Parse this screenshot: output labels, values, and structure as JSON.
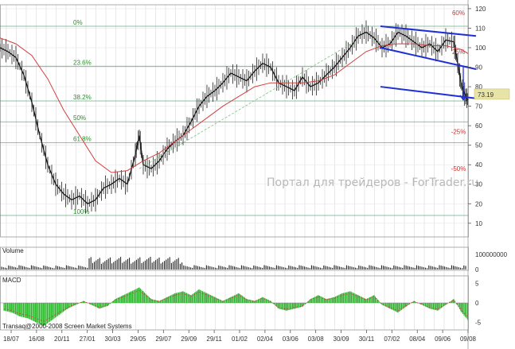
{
  "chart_data": {
    "type": "line",
    "price_axis": {
      "ticks": [
        10,
        20,
        30,
        40,
        50,
        60,
        70,
        80,
        90,
        100,
        110,
        120
      ],
      "ylim": [
        3,
        122
      ]
    },
    "x_tick_labels": [
      "18/07",
      "16/08",
      "20/11",
      "27/01",
      "30/03",
      "29/05",
      "29/07",
      "29/09",
      "29/11",
      "01/02",
      "02/04",
      "03/06",
      "03/08",
      "30/09",
      "30/11",
      "07/02",
      "08/04",
      "09/06",
      "09/08"
    ],
    "fib_levels": [
      {
        "label": "0%",
        "value": 111
      },
      {
        "label": "23.6%",
        "value": 90.5
      },
      {
        "label": "38.2%",
        "value": 72.7
      },
      {
        "label": "50%",
        "value": 62
      },
      {
        "label": "61.8%",
        "value": 51.3
      },
      {
        "label": "100%",
        "value": 14
      }
    ],
    "percent_labels": [
      {
        "label": "60%",
        "value": 118
      },
      {
        "label": "25%",
        "value": 98
      },
      {
        "label": "-25%",
        "value": 57
      },
      {
        "label": "-50%",
        "value": 38
      }
    ],
    "current_price": {
      "label": "73.19",
      "value": 76
    },
    "price_series": [
      [
        0,
        100
      ],
      [
        10,
        98
      ],
      [
        20,
        95
      ],
      [
        30,
        86
      ],
      [
        40,
        72
      ],
      [
        50,
        55
      ],
      [
        60,
        40
      ],
      [
        70,
        30
      ],
      [
        80,
        25
      ],
      [
        90,
        22
      ],
      [
        100,
        24
      ],
      [
        110,
        20
      ],
      [
        120,
        22
      ],
      [
        130,
        28
      ],
      [
        140,
        30
      ],
      [
        150,
        33
      ],
      [
        160,
        30
      ],
      [
        170,
        45
      ],
      [
        175,
        55
      ],
      [
        180,
        40
      ],
      [
        190,
        38
      ],
      [
        200,
        42
      ],
      [
        210,
        48
      ],
      [
        220,
        52
      ],
      [
        230,
        55
      ],
      [
        240,
        62
      ],
      [
        250,
        70
      ],
      [
        260,
        75
      ],
      [
        270,
        78
      ],
      [
        280,
        82
      ],
      [
        290,
        87
      ],
      [
        300,
        85
      ],
      [
        310,
        83
      ],
      [
        320,
        88
      ],
      [
        330,
        92
      ],
      [
        340,
        90
      ],
      [
        350,
        82
      ],
      [
        360,
        80
      ],
      [
        370,
        78
      ],
      [
        380,
        85
      ],
      [
        390,
        80
      ],
      [
        400,
        82
      ],
      [
        410,
        86
      ],
      [
        420,
        90
      ],
      [
        430,
        95
      ],
      [
        440,
        100
      ],
      [
        450,
        106
      ],
      [
        460,
        108
      ],
      [
        470,
        105
      ],
      [
        480,
        100
      ],
      [
        490,
        102
      ],
      [
        500,
        108
      ],
      [
        510,
        106
      ],
      [
        520,
        103
      ],
      [
        530,
        100
      ],
      [
        540,
        102
      ],
      [
        550,
        98
      ],
      [
        560,
        104
      ],
      [
        570,
        103
      ],
      [
        575,
        92
      ],
      [
        580,
        80
      ],
      [
        585,
        75
      ],
      [
        588,
        73.19
      ]
    ],
    "ma_series": [
      [
        0,
        105
      ],
      [
        20,
        102
      ],
      [
        40,
        96
      ],
      [
        60,
        84
      ],
      [
        80,
        68
      ],
      [
        100,
        55
      ],
      [
        120,
        42
      ],
      [
        140,
        36
      ],
      [
        160,
        37
      ],
      [
        180,
        42
      ],
      [
        200,
        46
      ],
      [
        220,
        52
      ],
      [
        240,
        58
      ],
      [
        260,
        64
      ],
      [
        280,
        70
      ],
      [
        300,
        75
      ],
      [
        320,
        80
      ],
      [
        340,
        82
      ],
      [
        360,
        82
      ],
      [
        380,
        82
      ],
      [
        400,
        83
      ],
      [
        420,
        86
      ],
      [
        440,
        92
      ],
      [
        460,
        98
      ],
      [
        480,
        101
      ],
      [
        500,
        102
      ],
      [
        520,
        102
      ],
      [
        540,
        101
      ],
      [
        560,
        101
      ],
      [
        580,
        99
      ],
      [
        588,
        97
      ]
    ],
    "dashed_trend": [
      [
        175,
        38
      ],
      [
        445,
        103
      ]
    ],
    "channel": {
      "upper": [
        [
          478,
          111
        ],
        [
          598,
          106
        ]
      ],
      "middle": [
        [
          478,
          100
        ],
        [
          598,
          89
        ]
      ],
      "lower": [
        [
          478,
          80
        ],
        [
          598,
          74
        ]
      ]
    },
    "arrow": {
      "x": 582,
      "from": 90,
      "to": 73.19
    },
    "volume": {
      "title": "Volume",
      "axis_labels": [
        "100000000",
        "0"
      ]
    },
    "macd": {
      "title": "MACD",
      "axis_labels": [
        "5",
        "0",
        "-5"
      ],
      "ylim": [
        -7,
        7
      ],
      "histogram": [
        [
          5,
          -2.0
        ],
        [
          15,
          -2.5
        ],
        [
          25,
          -3.5
        ],
        [
          35,
          -4.0
        ],
        [
          45,
          -5.0
        ],
        [
          55,
          -6.0
        ],
        [
          65,
          -4.5
        ],
        [
          75,
          -3.0
        ],
        [
          85,
          -1.5
        ],
        [
          95,
          -0.5
        ],
        [
          105,
          0.5
        ],
        [
          115,
          -0.5
        ],
        [
          125,
          -1.5
        ],
        [
          135,
          -0.8
        ],
        [
          145,
          1.0
        ],
        [
          155,
          2.0
        ],
        [
          165,
          3.0
        ],
        [
          175,
          4.0
        ],
        [
          180,
          3.0
        ],
        [
          190,
          1.0
        ],
        [
          200,
          0.5
        ],
        [
          210,
          1.5
        ],
        [
          220,
          2.5
        ],
        [
          230,
          3.0
        ],
        [
          240,
          2.0
        ],
        [
          250,
          3.5
        ],
        [
          260,
          2.5
        ],
        [
          270,
          1.5
        ],
        [
          280,
          0.5
        ],
        [
          290,
          1.5
        ],
        [
          300,
          2.5
        ],
        [
          310,
          1.0
        ],
        [
          320,
          0.5
        ],
        [
          330,
          1.5
        ],
        [
          340,
          0.5
        ],
        [
          350,
          -1.5
        ],
        [
          360,
          -2.0
        ],
        [
          370,
          -1.5
        ],
        [
          380,
          -1.0
        ],
        [
          390,
          1.0
        ],
        [
          400,
          2.0
        ],
        [
          410,
          1.0
        ],
        [
          420,
          1.5
        ],
        [
          430,
          2.5
        ],
        [
          440,
          3.0
        ],
        [
          450,
          2.0
        ],
        [
          460,
          1.0
        ],
        [
          470,
          2.0
        ],
        [
          480,
          -0.5
        ],
        [
          490,
          -1.5
        ],
        [
          500,
          -2.5
        ],
        [
          510,
          -1.0
        ],
        [
          520,
          0.5
        ],
        [
          530,
          -0.5
        ],
        [
          540,
          -1.5
        ],
        [
          550,
          -2.0
        ],
        [
          560,
          -0.5
        ],
        [
          570,
          1.0
        ],
        [
          580,
          -2.5
        ],
        [
          588,
          -4.5
        ]
      ]
    },
    "watermark": "Портал для трейдеров - ForTrader.ru",
    "copyright": "Transaq@2000-2008 Screen Market Systems"
  }
}
